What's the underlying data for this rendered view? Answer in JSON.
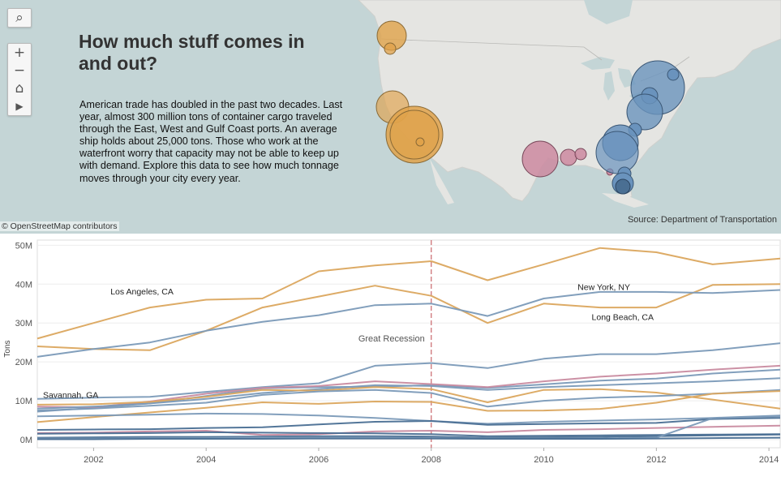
{
  "map": {
    "title": "How much stuff comes in and out?",
    "description": "American trade has doubled in the past two decades. Last year, almost 300 million tons of container cargo traveled through the East, West and Gulf Coast ports. An average ship holds about 25,000 tons. Those who work at the waterfront worry that capacity may not be able to keep up with demand. Explore this data to see how much tonnage moves through your city every year.",
    "attribution": "© OpenStreetMap contributors",
    "source": "Source: Department of Transportation",
    "controls": {
      "search": "⌕",
      "zoom_in": "+",
      "zoom_out": "−",
      "home": "⌂",
      "play": "▶"
    },
    "region_colors": {
      "west": "#e0a24a",
      "gulf": "#cc8aa0",
      "east": "#6a93bd"
    }
  },
  "chart_data": {
    "type": "line",
    "xlabel": "",
    "ylabel": "Tons",
    "xlim": [
      2001,
      2014.2
    ],
    "ylim": [
      0,
      53000000
    ],
    "x_ticks": [
      2002,
      2004,
      2006,
      2008,
      2010,
      2012,
      2014
    ],
    "y_ticks": [
      {
        "v": 0,
        "label": "0M"
      },
      {
        "v": 10000000,
        "label": "10M"
      },
      {
        "v": 20000000,
        "label": "20M"
      },
      {
        "v": 30000000,
        "label": "30M"
      },
      {
        "v": 40000000,
        "label": "40M"
      },
      {
        "v": 50000000,
        "label": "50M"
      }
    ],
    "reference_line": {
      "x": 2008,
      "label": "Great Recession"
    },
    "colors": {
      "west": "#dba75e",
      "gulf": "#c98ba0",
      "east": "#7b9ab8",
      "dark": "#4a6f93"
    },
    "x": [
      2001,
      2002,
      2003,
      2004,
      2005,
      2006,
      2007,
      2008,
      2009,
      2010,
      2011,
      2012,
      2013,
      2014.2
    ],
    "series": [
      {
        "name": "Los Angeles, CA",
        "region": "west",
        "values": [
          26000000,
          30000000,
          34000000,
          36000000,
          36300000,
          43300000,
          44800000,
          45900000,
          41000000,
          45100000,
          49300000,
          48200000,
          45100000,
          46600000
        ]
      },
      {
        "name": "Long Beach, CA",
        "region": "west",
        "values": [
          24000000,
          23300000,
          23000000,
          28000000,
          34000000,
          36800000,
          39600000,
          37000000,
          30000000,
          35000000,
          34000000,
          34000000,
          39800000,
          40000000
        ]
      },
      {
        "name": "New York, NY",
        "region": "east",
        "values": [
          21300000,
          23300000,
          25000000,
          28000000,
          30300000,
          32000000,
          34600000,
          35000000,
          31800000,
          36300000,
          38000000,
          38000000,
          37700000,
          38500000
        ]
      },
      {
        "name": "",
        "region": "east",
        "values": [
          10500000,
          10800000,
          11000000,
          12300000,
          13500000,
          14500000,
          19000000,
          19700000,
          18400000,
          20800000,
          22000000,
          22000000,
          23000000,
          24800000
        ]
      },
      {
        "name": "Savannah, GA",
        "region": "east",
        "values": [
          7200000,
          8200000,
          9300000,
          11200000,
          13200000,
          13500000,
          13600000,
          14000000,
          13300000,
          14200000,
          15200000,
          15700000,
          17000000,
          18000000
        ]
      },
      {
        "name": "",
        "region": "gulf",
        "values": [
          8500000,
          8300000,
          9800000,
          11800000,
          13300000,
          13800000,
          15000000,
          14300000,
          13500000,
          15000000,
          16200000,
          17000000,
          18000000,
          19000000
        ]
      },
      {
        "name": "",
        "region": "east",
        "values": [
          8000000,
          8500000,
          9300000,
          10500000,
          12000000,
          13000000,
          14000000,
          13800000,
          12800000,
          13500000,
          14000000,
          14500000,
          15000000,
          15800000
        ]
      },
      {
        "name": "",
        "region": "west",
        "values": [
          9000000,
          9100000,
          9700000,
          11000000,
          12800000,
          12600000,
          13500000,
          13000000,
          9600000,
          12800000,
          13000000,
          12100000,
          10300000,
          8000000
        ]
      },
      {
        "name": "",
        "region": "east",
        "values": [
          7500000,
          8000000,
          8700000,
          9500000,
          11500000,
          12400000,
          12800000,
          12000000,
          8500000,
          10000000,
          10800000,
          11200000,
          11800000,
          12800000
        ]
      },
      {
        "name": "",
        "region": "west",
        "values": [
          4500000,
          5800000,
          7000000,
          8200000,
          9600000,
          9200000,
          9800000,
          9700000,
          7400000,
          7500000,
          7900000,
          9500000,
          11800000,
          12500000
        ]
      },
      {
        "name": "",
        "region": "east",
        "values": [
          6000000,
          6200000,
          6400000,
          6700000,
          6600000,
          6200000,
          5600000,
          4800000,
          4100000,
          4600000,
          4900000,
          5200000,
          5600000,
          6200000
        ]
      },
      {
        "name": "",
        "region": "dark",
        "values": [
          2500000,
          2600000,
          2700000,
          3000000,
          3200000,
          3900000,
          4600000,
          4800000,
          3800000,
          4000000,
          4200000,
          4300000,
          5300000,
          5600000
        ]
      },
      {
        "name": "",
        "region": "gulf",
        "values": [
          1700000,
          1800000,
          2100000,
          2300000,
          1200000,
          1400000,
          2100000,
          2300000,
          1900000,
          2500000,
          2700000,
          3000000,
          3300000,
          3600000
        ]
      },
      {
        "name": "",
        "region": "dark",
        "values": [
          1500000,
          1600000,
          1700000,
          1900000,
          1800000,
          1700000,
          1600000,
          1400000,
          900000,
          1000000,
          1100000,
          1200000,
          1300000,
          1400000
        ]
      },
      {
        "name": "",
        "region": "dark",
        "values": [
          500000,
          600000,
          700000,
          700000,
          800000,
          900000,
          900000,
          800000,
          500000,
          600000,
          700000,
          900000,
          1100000,
          1300000
        ]
      },
      {
        "name": "",
        "region": "east",
        "values": [
          300000,
          300000,
          400000,
          400000,
          500000,
          500000,
          500000,
          400000,
          300000,
          300000,
          300000,
          500000,
          5500000,
          6000000
        ]
      },
      {
        "name": "",
        "region": "dark",
        "values": [
          100000,
          100000,
          200000,
          200000,
          200000,
          300000,
          300000,
          300000,
          200000,
          200000,
          200000,
          300000,
          400000,
          500000
        ]
      }
    ],
    "annotations": [
      {
        "text": "Los Angeles, CA",
        "x": 2002.3,
        "y": 37300000
      },
      {
        "text": "New York, NY",
        "x": 2010.6,
        "y": 38500000
      },
      {
        "text": "Long Beach, CA",
        "x": 2010.85,
        "y": 30800000
      },
      {
        "text": "Savannah, GA",
        "x": 2001.1,
        "y": 10700000
      }
    ]
  }
}
